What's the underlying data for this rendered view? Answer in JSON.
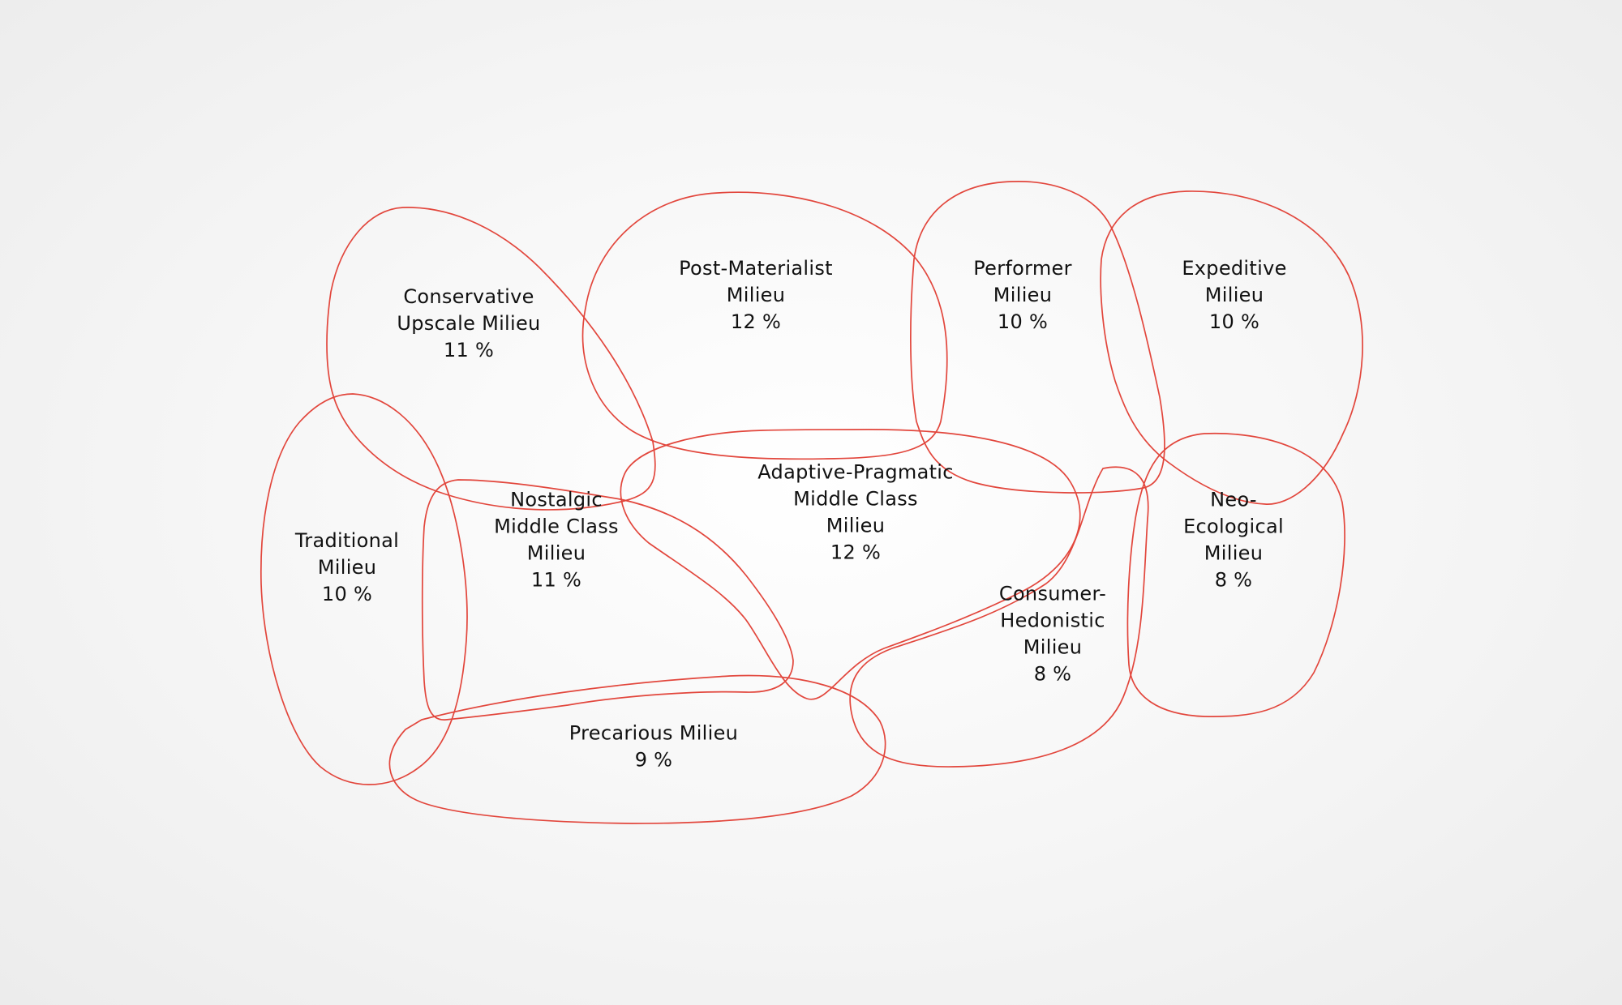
{
  "colors": {
    "outline": "#e2463c",
    "text": "#111111",
    "background": "#f3f3f3"
  },
  "milieus": [
    {
      "id": "conservative-upscale",
      "lines": [
        "Conservative",
        "Upscale Milieu",
        "11 %"
      ],
      "share_percent": 11
    },
    {
      "id": "post-materialist",
      "lines": [
        "Post-Materialist",
        "Milieu",
        "12 %"
      ],
      "share_percent": 12
    },
    {
      "id": "performer",
      "lines": [
        "Performer",
        "Milieu",
        "10 %"
      ],
      "share_percent": 10
    },
    {
      "id": "expeditive",
      "lines": [
        "Expeditive",
        "Milieu",
        "10 %"
      ],
      "share_percent": 10
    },
    {
      "id": "traditional",
      "lines": [
        "Traditional",
        "Milieu",
        "10 %"
      ],
      "share_percent": 10
    },
    {
      "id": "nostalgic-middle-class",
      "lines": [
        "Nostalgic",
        "Middle Class",
        "Milieu",
        "11 %"
      ],
      "share_percent": 11
    },
    {
      "id": "adaptive-pragmatic",
      "lines": [
        "Adaptive-Pragmatic",
        "Middle Class",
        "Milieu",
        "12 %"
      ],
      "share_percent": 12
    },
    {
      "id": "neo-ecological",
      "lines": [
        "Neo-",
        "Ecological",
        "Milieu",
        "8 %"
      ],
      "share_percent": 8
    },
    {
      "id": "consumer-hedonistic",
      "lines": [
        "Consumer-",
        "Hedonistic",
        "Milieu",
        "8 %"
      ],
      "share_percent": 8
    },
    {
      "id": "precarious",
      "lines": [
        "Precarious Milieu",
        "9 %"
      ],
      "share_percent": 9
    }
  ]
}
